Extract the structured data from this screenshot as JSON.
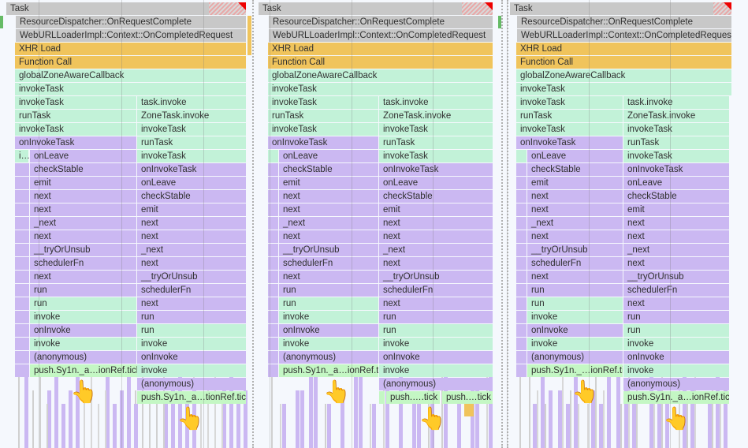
{
  "app": "Chrome DevTools Performance - Flame Chart",
  "colors": {
    "task_gray": "#c8c8c8",
    "xhr_yellow": "#f0c45c",
    "js_green": "#c2f2d8",
    "js_purple": "#cbb8f2",
    "tick_green": "#c4f7c4",
    "long_task_red": "#ee0000"
  },
  "icons": {
    "pointer": "👆"
  },
  "panels": [
    {
      "top": {
        "task": "Task",
        "resource": "ResourceDispatcher::OnRequestComplete",
        "loader": "WebURLLoaderImpl::Context::OnCompletedRequest",
        "xhr": "XHR Load",
        "function_call": "Function Call",
        "global": "globalZoneAwareCallback",
        "invoke_task": "invokeTask"
      },
      "left": [
        "invokeTask",
        "runTask",
        "invokeTask",
        "onInvokeTask",
        "onLeave",
        "checkStable",
        "emit",
        "next",
        "next",
        "_next",
        "next",
        "__tryOrUnsub",
        "schedulerFn",
        "next",
        "run",
        "run",
        "invoke",
        "onInvoke",
        "invoke",
        "(anonymous)",
        "push.Sy1n._a…ionRef.tick"
      ],
      "left_truncated": "i…",
      "right": [
        "task.invoke",
        "ZoneTask.invoke",
        "invokeTask",
        "runTask",
        "invokeTask",
        "onInvokeTask",
        "onLeave",
        "checkStable",
        "emit",
        "next",
        "next",
        "_next",
        "next",
        "__tryOrUnsub",
        "schedulerFn",
        "next",
        "run",
        "run",
        "invoke",
        "onInvoke",
        "invoke",
        "(anonymous)",
        "push.Sy1n._a…tionRef.tick"
      ]
    },
    {
      "top": {
        "task": "Task",
        "resource": "ResourceDispatcher::OnRequestComplete",
        "loader": "WebURLLoaderImpl::Context::OnCompletedRequest",
        "xhr": "XHR Load",
        "function_call": "Function Call",
        "global": "globalZoneAwareCallback",
        "invoke_task": "invokeTask"
      },
      "left": [
        "invokeTask",
        "runTask",
        "invokeTask",
        "onInvokeTask",
        "onLeave",
        "checkStable",
        "emit",
        "next",
        "next",
        "_next",
        "next",
        "__tryOrUnsub",
        "schedulerFn",
        "next",
        "run",
        "run",
        "invoke",
        "onInvoke",
        "invoke",
        "(anonymous)",
        "push.Sy1n._a…ionRef.tick"
      ],
      "right": [
        "task.invoke",
        "ZoneTask.invoke",
        "invokeTask",
        "runTask",
        "invokeTask",
        "onInvokeTask",
        "onLeave",
        "checkStable",
        "emit",
        "next",
        "next",
        "_next",
        "next",
        "__tryOrUnsub",
        "schedulerFn",
        "next",
        "run",
        "run",
        "invoke",
        "onInvoke",
        "invoke",
        "(anonymous)"
      ],
      "right_split": [
        "push.….tick",
        "push.…tick"
      ]
    },
    {
      "top": {
        "task": "Task",
        "resource": "ResourceDispatcher::OnRequestComplete",
        "loader": "WebURLLoaderImpl::Context::OnCompletedRequest",
        "xhr": "XHR Load",
        "function_call": "Function Call",
        "global": "globalZoneAwareCallback",
        "invoke_task": "invokeTask"
      },
      "left": [
        "invokeTask",
        "runTask",
        "invokeTask",
        "onInvokeTask",
        "onLeave",
        "checkStable",
        "emit",
        "next",
        "next",
        "_next",
        "next",
        "__tryOrUnsub",
        "schedulerFn",
        "next",
        "run",
        "run",
        "invoke",
        "onInvoke",
        "invoke",
        "(anonymous)",
        "push.Sy1n._…ionRef.tick"
      ],
      "right": [
        "task.invoke",
        "ZoneTask.invoke",
        "invokeTask",
        "runTask",
        "invokeTask",
        "onInvokeTask",
        "onLeave",
        "checkStable",
        "emit",
        "next",
        "next",
        "_next",
        "next",
        "__tryOrUnsub",
        "schedulerFn",
        "next",
        "run",
        "run",
        "invoke",
        "onInvoke",
        "invoke",
        "(anonymous)",
        "push.Sy1n._a…ionRef.tick"
      ]
    }
  ]
}
